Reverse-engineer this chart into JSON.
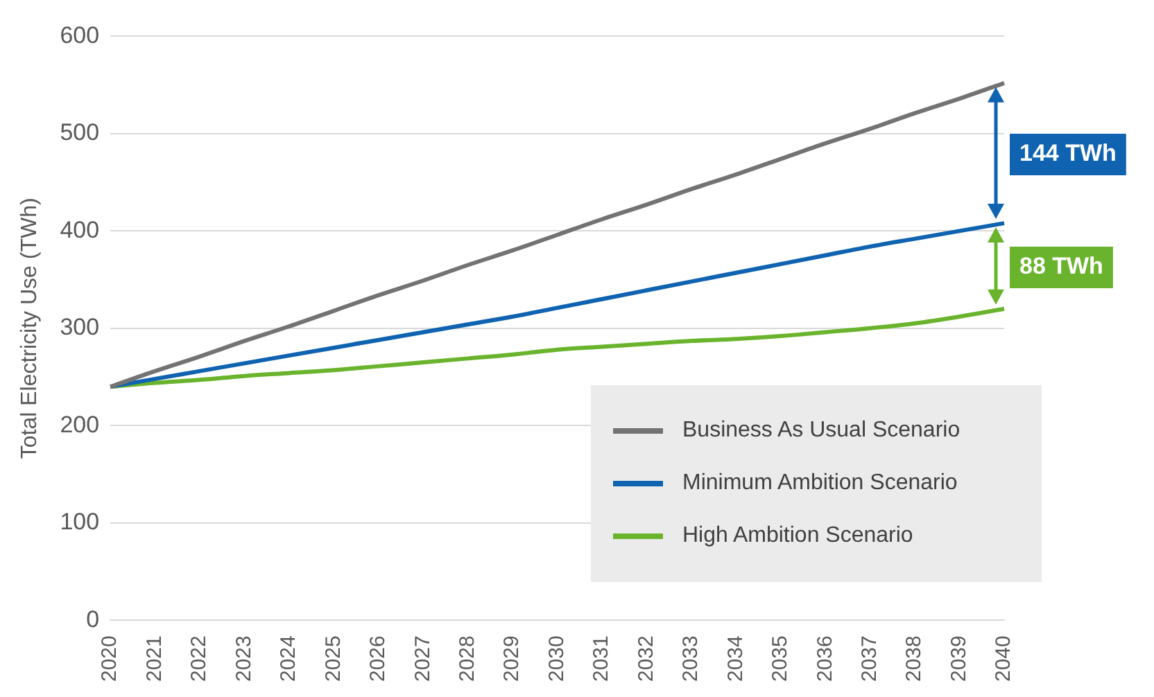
{
  "chart_data": {
    "type": "line",
    "ylabel": "Total Electricity Use (TWh)",
    "categories": [
      "2020",
      "2021",
      "2022",
      "2023",
      "2024",
      "2025",
      "2026",
      "2027",
      "2028",
      "2029",
      "2030",
      "2031",
      "2032",
      "2033",
      "2034",
      "2035",
      "2036",
      "2037",
      "2038",
      "2039",
      "2040"
    ],
    "series": [
      {
        "name": "Business As Usual Scenario",
        "color": "#737373",
        "values": [
          240,
          256,
          271,
          287,
          302,
          318,
          334,
          349,
          365,
          380,
          396,
          412,
          427,
          443,
          458,
          474,
          490,
          505,
          521,
          536,
          552
        ]
      },
      {
        "name": "Minimum Ambition Scenario",
        "color": "#0f63b0",
        "values": [
          240,
          248,
          256,
          264,
          272,
          280,
          288,
          296,
          304,
          312,
          321,
          330,
          339,
          348,
          357,
          366,
          375,
          384,
          392,
          400,
          408
        ]
      },
      {
        "name": "High Ambition Scenario",
        "color": "#6ab42d",
        "values": [
          240,
          244,
          247,
          251,
          254,
          257,
          261,
          265,
          269,
          273,
          278,
          281,
          284,
          287,
          289,
          292,
          296,
          300,
          305,
          312,
          320
        ]
      }
    ],
    "annotations": [
      "144 TWh",
      "88 TWh"
    ],
    "ylim": [
      0,
      600
    ],
    "yticks": [
      0,
      100,
      200,
      300,
      400,
      500,
      600
    ],
    "grid": "y",
    "legend": "bottom right",
    "marker": "none",
    "line_style": "solid"
  }
}
